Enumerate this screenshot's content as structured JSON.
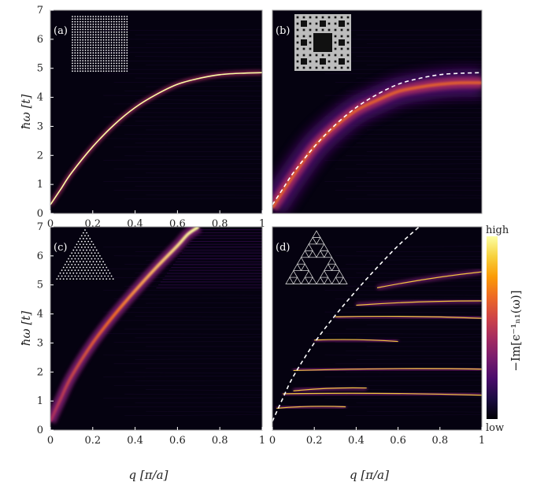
{
  "colors": {
    "background": "#050210",
    "colormap": [
      "#000004",
      "#1b0c41",
      "#4a0c6b",
      "#781c6d",
      "#a52c60",
      "#cf4446",
      "#ed6925",
      "#fb9b06",
      "#f7d13d",
      "#fcffa4"
    ],
    "dispersion_dashed": "#ffffff"
  },
  "colorbar": {
    "high_label": "high",
    "low_label": "low",
    "label": "−Im[ϵ⁻¹ₙ₁(ω)]"
  },
  "chart_data": [
    {
      "type": "heatmap",
      "panel_label": "(a)",
      "inset": "square-lattice-icon",
      "xlabel": "",
      "ylabel": "ħω [t]",
      "xlim": [
        0,
        1
      ],
      "ylim": [
        0,
        7
      ],
      "xticks": [
        "0",
        "0.2",
        "0.4",
        "0.6",
        "0.8",
        "1"
      ],
      "yticks": [
        "0",
        "1",
        "2",
        "3",
        "4",
        "5",
        "6",
        "7"
      ],
      "dispersion": {
        "x": [
          0,
          0.05,
          0.1,
          0.2,
          0.3,
          0.4,
          0.5,
          0.6,
          0.7,
          0.8,
          0.9,
          1.0
        ],
        "y": [
          0.3,
          0.85,
          1.4,
          2.3,
          3.05,
          3.65,
          4.1,
          4.45,
          4.65,
          4.78,
          4.83,
          4.85
        ]
      }
    },
    {
      "type": "heatmap",
      "panel_label": "(b)",
      "inset": "sierpinski-carpet-icon",
      "xlabel": "",
      "ylabel": "",
      "xlim": [
        0,
        1
      ],
      "ylim": [
        0,
        7
      ],
      "xticks": [],
      "yticks": [],
      "dashed_reference": {
        "x": [
          0,
          0.05,
          0.1,
          0.2,
          0.3,
          0.4,
          0.5,
          0.6,
          0.7,
          0.8,
          0.9,
          1.0
        ],
        "y": [
          0.3,
          0.85,
          1.4,
          2.3,
          3.05,
          3.65,
          4.1,
          4.45,
          4.65,
          4.78,
          4.83,
          4.85
        ]
      },
      "dispersion": {
        "x": [
          0,
          0.1,
          0.2,
          0.3,
          0.4,
          0.5,
          0.6,
          0.7,
          0.8,
          0.9,
          1.0
        ],
        "y": [
          0.2,
          1.3,
          2.3,
          3.0,
          3.55,
          3.9,
          4.2,
          4.35,
          4.45,
          4.5,
          4.5
        ]
      }
    },
    {
      "type": "heatmap",
      "panel_label": "(c)",
      "inset": "triangle-lattice-icon",
      "xlabel": "q [π/a]",
      "ylabel": "ħω [t]",
      "xlim": [
        0,
        1
      ],
      "ylim": [
        0,
        7
      ],
      "xticks": [
        "0",
        "0.2",
        "0.4",
        "0.6",
        "0.8",
        "1"
      ],
      "yticks": [
        "0",
        "1",
        "2",
        "3",
        "4",
        "5",
        "6",
        "7"
      ],
      "dispersion": {
        "x": [
          0,
          0.05,
          0.1,
          0.2,
          0.3,
          0.4,
          0.5,
          0.6,
          0.65,
          0.7
        ],
        "y": [
          0.3,
          1.1,
          1.85,
          3.0,
          3.95,
          4.8,
          5.6,
          6.35,
          6.75,
          7.0
        ]
      }
    },
    {
      "type": "heatmap",
      "panel_label": "(d)",
      "inset": "sierpinski-gasket-icon",
      "xlabel": "q [π/a]",
      "ylabel": "",
      "xlim": [
        0,
        1
      ],
      "ylim": [
        0,
        7
      ],
      "xticks": [
        "0",
        "0.2",
        "0.4",
        "0.6",
        "0.8",
        "1"
      ],
      "yticks": [],
      "dashed_reference": {
        "x": [
          0,
          0.05,
          0.1,
          0.2,
          0.3,
          0.4,
          0.5,
          0.6,
          0.7
        ],
        "y": [
          0.3,
          1.1,
          1.85,
          3.0,
          3.95,
          4.8,
          5.6,
          6.35,
          7.0
        ]
      },
      "bands": [
        {
          "y": 0.75,
          "x0": 0.02,
          "x1": 0.35,
          "y1": 0.8
        },
        {
          "y": 1.25,
          "x0": 0.05,
          "x1": 1.0,
          "y1": 1.2
        },
        {
          "y": 1.35,
          "x0": 0.1,
          "x1": 0.45,
          "y1": 1.45
        },
        {
          "y": 2.05,
          "x0": 0.1,
          "x1": 1.0,
          "y1": 2.1
        },
        {
          "y": 3.1,
          "x0": 0.2,
          "x1": 0.6,
          "y1": 3.05
        },
        {
          "y": 3.9,
          "x0": 0.3,
          "x1": 1.0,
          "y1": 3.85
        },
        {
          "y": 4.3,
          "x0": 0.4,
          "x1": 1.0,
          "y1": 4.45
        },
        {
          "y": 4.9,
          "x0": 0.5,
          "x1": 1.0,
          "y1": 5.45
        }
      ]
    }
  ]
}
